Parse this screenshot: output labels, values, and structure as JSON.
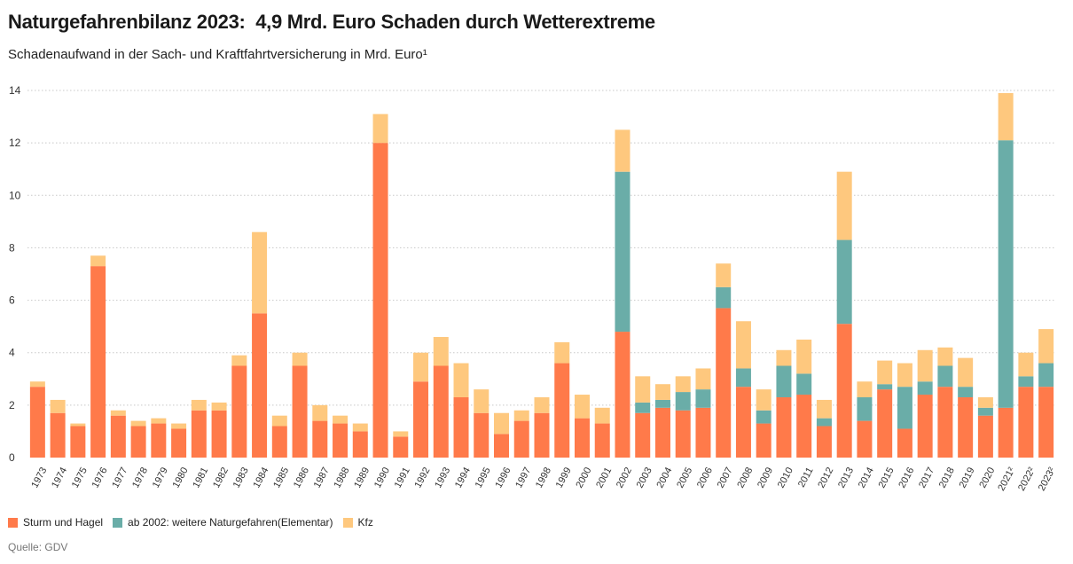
{
  "header": {
    "title": "Naturgefahrenbilanz 2023:  4,9 Mrd. Euro Schaden durch Wetterextreme",
    "subtitle": "Schadenaufwand in der Sach- und Kraftfahrtversicherung in Mrd. Euro¹"
  },
  "legend": {
    "items": [
      {
        "label": "Sturm und Hagel",
        "color": "#ff7a4a"
      },
      {
        "label": "ab 2002: weitere Naturgefahren(Elementar)",
        "color": "#6aada8"
      },
      {
        "label": "Kfz",
        "color": "#fec87e"
      }
    ]
  },
  "footer": {
    "source": "Quelle: GDV"
  },
  "chart_data": {
    "type": "bar",
    "stacked": true,
    "categories": [
      "1973",
      "1974",
      "1975",
      "1976",
      "1977",
      "1978",
      "1979",
      "1980",
      "1981",
      "1982",
      "1983",
      "1984",
      "1985",
      "1986",
      "1987",
      "1988",
      "1989",
      "1990",
      "1991",
      "1992",
      "1993",
      "1994",
      "1995",
      "1996",
      "1997",
      "1998",
      "1999",
      "2000",
      "2001",
      "2002",
      "2003",
      "2004",
      "2005",
      "2006",
      "2007",
      "2008",
      "2009",
      "2010",
      "2011",
      "2012",
      "2013",
      "2014",
      "2015",
      "2016",
      "2017",
      "2018",
      "2019",
      "2020",
      "2021²",
      "2022²",
      "2023²"
    ],
    "series": [
      {
        "name": "Sturm und Hagel",
        "color": "#ff7a4a",
        "values": [
          2.7,
          1.7,
          1.2,
          7.3,
          1.6,
          1.2,
          1.3,
          1.1,
          1.8,
          1.8,
          3.5,
          5.5,
          1.2,
          3.5,
          1.4,
          1.3,
          1.0,
          12.0,
          0.8,
          2.9,
          3.5,
          2.3,
          1.7,
          0.9,
          1.4,
          1.7,
          3.6,
          1.5,
          1.3,
          4.8,
          1.7,
          1.9,
          1.8,
          1.9,
          5.7,
          2.7,
          1.3,
          2.3,
          2.4,
          1.2,
          5.1,
          1.4,
          2.6,
          1.1,
          2.4,
          2.7,
          2.3,
          1.6,
          1.9,
          2.7,
          2.7
        ]
      },
      {
        "name": "ab 2002: weitere Naturgefahren(Elementar)",
        "color": "#6aada8",
        "values": [
          0,
          0,
          0,
          0,
          0,
          0,
          0,
          0,
          0,
          0,
          0,
          0,
          0,
          0,
          0,
          0,
          0,
          0,
          0,
          0,
          0,
          0,
          0,
          0,
          0,
          0,
          0,
          0,
          0,
          6.1,
          0.4,
          0.3,
          0.7,
          0.7,
          0.8,
          0.7,
          0.5,
          1.2,
          0.8,
          0.3,
          3.2,
          0.9,
          0.2,
          1.6,
          0.5,
          0.8,
          0.4,
          0.3,
          10.2,
          0.4,
          0.9
        ]
      },
      {
        "name": "Kfz",
        "color": "#fec87e",
        "values": [
          0.2,
          0.5,
          0.1,
          0.4,
          0.2,
          0.2,
          0.2,
          0.2,
          0.4,
          0.3,
          0.4,
          3.1,
          0.4,
          0.5,
          0.6,
          0.3,
          0.3,
          1.1,
          0.2,
          1.1,
          1.1,
          1.3,
          0.9,
          0.8,
          0.4,
          0.6,
          0.8,
          0.9,
          0.6,
          1.6,
          1.0,
          0.6,
          0.6,
          0.8,
          0.9,
          1.8,
          0.8,
          0.6,
          1.3,
          0.7,
          2.6,
          0.6,
          0.9,
          0.9,
          1.2,
          0.7,
          1.1,
          0.4,
          1.8,
          0.9,
          1.3
        ]
      }
    ],
    "yticks": [
      "0",
      "2",
      "4",
      "6",
      "8",
      "10",
      "12",
      "14"
    ],
    "ylim": [
      0,
      14
    ],
    "grid": true
  }
}
